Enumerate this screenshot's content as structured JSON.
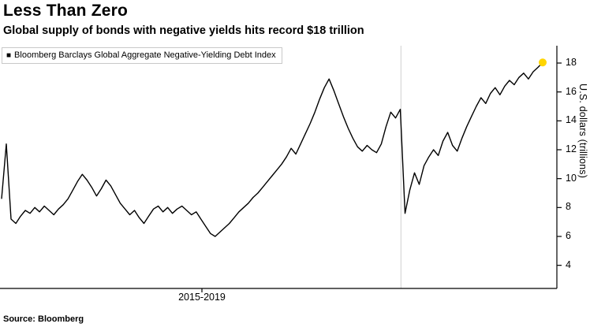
{
  "header": {
    "title": "Less Than Zero",
    "subtitle": "Global supply of bonds with negative yields hits record $18 trillion"
  },
  "legend": {
    "marker": "■",
    "label": "Bloomberg Barclays Global Aggregate Negative-Yielding Debt Index"
  },
  "footer": {
    "source": "Source: Bloomberg"
  },
  "chart_data": {
    "type": "line",
    "title": "Less Than Zero",
    "subtitle": "Global supply of bonds with negative yields hits record $18 trillion",
    "ylabel": "U.S. dollars (trillions)",
    "yticks": [
      4,
      6,
      8,
      10,
      12,
      14,
      16,
      18
    ],
    "ylim": [
      2.4,
      19.2
    ],
    "x_tick_label": "2015-2019",
    "grid": false,
    "legend_position": "top-left",
    "line_color": "#000000",
    "highlight_color": "#ffd500",
    "vline_frac": 0.72,
    "last_value": 18.04,
    "source": "Source: Bloomberg",
    "series": [
      {
        "name": "Bloomberg Barclays Global Aggregate Negative-Yielding Debt Index",
        "values": [
          8.6,
          12.4,
          7.2,
          6.9,
          7.4,
          7.8,
          7.6,
          8.0,
          7.7,
          8.1,
          7.8,
          7.5,
          7.9,
          8.2,
          8.6,
          9.2,
          9.8,
          10.3,
          9.9,
          9.4,
          8.8,
          9.3,
          9.9,
          9.5,
          8.9,
          8.3,
          7.9,
          7.5,
          7.8,
          7.3,
          6.9,
          7.4,
          7.9,
          8.1,
          7.7,
          8.0,
          7.6,
          7.9,
          8.1,
          7.8,
          7.5,
          7.7,
          7.2,
          6.7,
          6.2,
          6.0,
          6.3,
          6.6,
          6.9,
          7.3,
          7.7,
          8.0,
          8.3,
          8.7,
          9.0,
          9.4,
          9.8,
          10.2,
          10.6,
          11.0,
          11.5,
          12.1,
          11.7,
          12.4,
          13.1,
          13.8,
          14.6,
          15.5,
          16.3,
          16.9,
          16.1,
          15.2,
          14.3,
          13.5,
          12.8,
          12.2,
          11.9,
          12.3,
          12.0,
          11.8,
          12.4,
          13.6,
          14.6,
          14.2,
          14.8,
          7.6,
          9.2,
          10.4,
          9.6,
          10.9,
          11.5,
          12.0,
          11.6,
          12.6,
          13.2,
          12.3,
          11.9,
          12.8,
          13.6,
          14.3,
          15.0,
          15.6,
          15.2,
          15.9,
          16.3,
          15.8,
          16.4,
          16.8,
          16.5,
          17.0,
          17.3,
          16.9,
          17.4,
          17.7,
          18.04
        ]
      }
    ]
  }
}
